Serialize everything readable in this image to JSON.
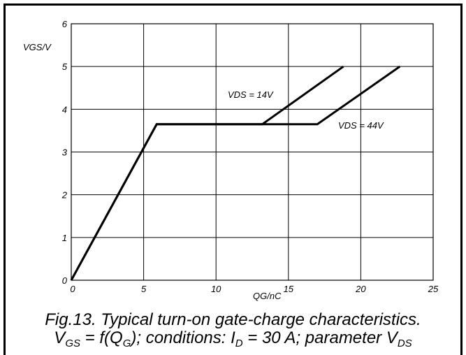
{
  "chart_data": {
    "type": "line",
    "xlabel": "QG/nC",
    "ylabel": "VGS/V",
    "xlim": [
      0,
      25
    ],
    "ylim": [
      0,
      6
    ],
    "xticks": [
      "0",
      "5",
      "10",
      "15",
      "20",
      "25"
    ],
    "yticks": [
      "0",
      "1",
      "2",
      "3",
      "4",
      "5",
      "6"
    ],
    "grid": true,
    "series": [
      {
        "name": "VDS = 14V",
        "x": [
          0,
          5.9,
          13.2,
          18.8
        ],
        "y": [
          0,
          3.65,
          3.65,
          5.0
        ]
      },
      {
        "name": "VDS = 44V",
        "x": [
          0,
          5.9,
          17.0,
          22.7
        ],
        "y": [
          0,
          3.65,
          3.65,
          5.0
        ]
      }
    ]
  },
  "caption": {
    "line1": "Fig.13.  Typical turn-on gate-charge characteristics.",
    "line2": {
      "v": "V",
      "gs_sub": "GS",
      "eq": " = f(Q",
      "g_sub": "G",
      "mid": "); conditions: I",
      "d_sub": "D",
      "mid2": " = 30 A; parameter V",
      "ds_sub": "DS"
    }
  }
}
